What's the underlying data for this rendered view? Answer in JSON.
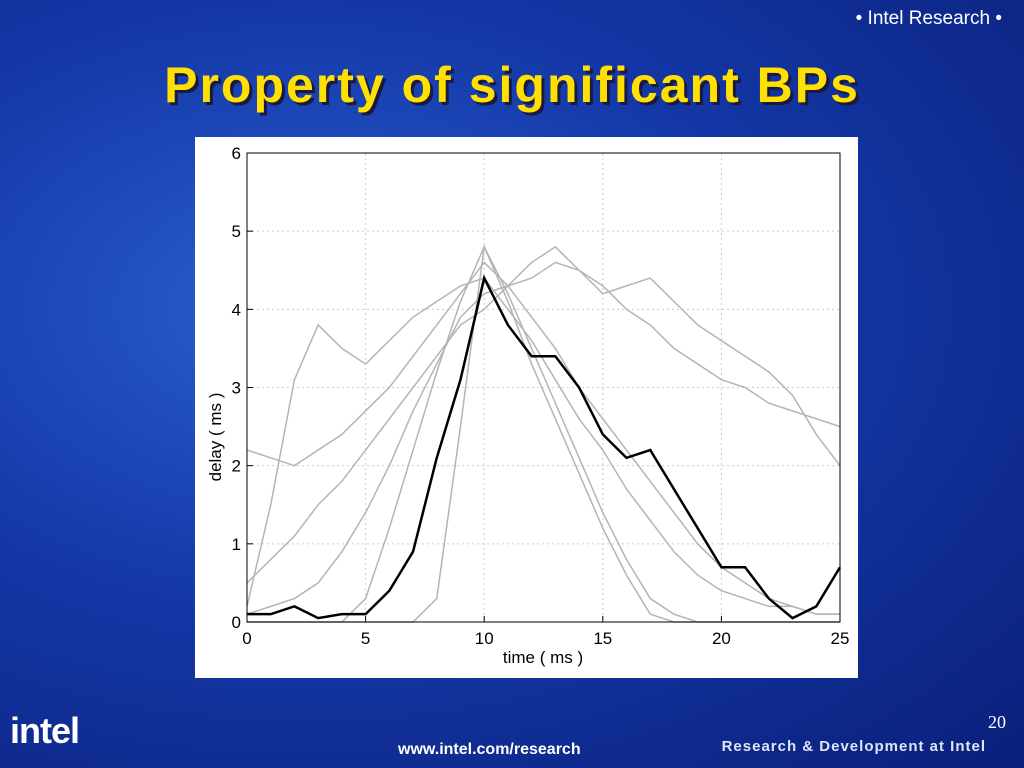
{
  "header": {
    "tag": "• Intel Research •",
    "title": "Property of significant BPs"
  },
  "footer": {
    "logo": "intel",
    "url": "www.intel.com/research",
    "tagline": "Research & Development at Intel",
    "page": "20"
  },
  "chart_data": {
    "type": "line",
    "x_label": "time ( ms )",
    "y_label": "delay ( ms )",
    "x": [
      0,
      1,
      2,
      3,
      4,
      5,
      6,
      7,
      8,
      9,
      10,
      11,
      12,
      13,
      14,
      15,
      16,
      17,
      18,
      19,
      20,
      21,
      22,
      23,
      24,
      25
    ],
    "xlim": [
      0,
      25
    ],
    "xticks": [
      0,
      5,
      10,
      15,
      20,
      25
    ],
    "ylim": [
      0,
      6
    ],
    "yticks": [
      0,
      1,
      2,
      3,
      4,
      5,
      6
    ],
    "grid": true,
    "series": [
      {
        "color": "#b4b4b4",
        "values": [
          0,
          0,
          0,
          0,
          0,
          0.3,
          1.2,
          2.2,
          3.2,
          4.1,
          4.8,
          4.2,
          3.5,
          2.8,
          2.1,
          1.4,
          0.8,
          0.3,
          0.1,
          0,
          0,
          0,
          0,
          0,
          0,
          0
        ]
      },
      {
        "color": "#b4b4b4",
        "values": [
          0.2,
          1.5,
          3.1,
          3.8,
          3.5,
          3.3,
          3.6,
          3.9,
          4.1,
          4.3,
          4.4,
          4.0,
          3.6,
          3.1,
          2.6,
          2.2,
          1.7,
          1.3,
          0.9,
          0.6,
          0.4,
          0.3,
          0.2,
          0.2,
          0.1,
          0.1
        ]
      },
      {
        "color": "#b4b4b4",
        "values": [
          0.1,
          0.2,
          0.3,
          0.5,
          0.9,
          1.4,
          2.0,
          2.7,
          3.3,
          3.9,
          4.2,
          4.3,
          4.4,
          4.6,
          4.5,
          4.3,
          4.0,
          3.8,
          3.5,
          3.3,
          3.1,
          3.0,
          2.8,
          2.7,
          2.6,
          2.5
        ]
      },
      {
        "color": "#b4b4b4",
        "values": [
          2.2,
          2.1,
          2.0,
          2.2,
          2.4,
          2.7,
          3.0,
          3.4,
          3.8,
          4.2,
          4.6,
          4.3,
          3.9,
          3.5,
          3.0,
          2.6,
          2.2,
          1.8,
          1.4,
          1.0,
          0.7,
          0.5,
          0.3,
          0.2,
          0.1,
          0.1
        ]
      },
      {
        "color": "#b4b4b4",
        "values": [
          0,
          0,
          0,
          0,
          0,
          0,
          0,
          0,
          0.3,
          2.5,
          4.8,
          4.1,
          3.3,
          2.6,
          1.9,
          1.2,
          0.6,
          0.1,
          0,
          0,
          0,
          0,
          0,
          0,
          0,
          0
        ]
      },
      {
        "color": "#b4b4b4",
        "values": [
          0.5,
          0.8,
          1.1,
          1.5,
          1.8,
          2.2,
          2.6,
          3.0,
          3.4,
          3.8,
          4.0,
          4.3,
          4.6,
          4.8,
          4.5,
          4.2,
          4.3,
          4.4,
          4.1,
          3.8,
          3.6,
          3.4,
          3.2,
          2.9,
          2.4,
          2.0
        ]
      },
      {
        "color": "#000000",
        "values": [
          0.1,
          0.1,
          0.2,
          0.05,
          0.1,
          0.1,
          0.4,
          0.9,
          2.1,
          3.1,
          4.4,
          3.8,
          3.4,
          3.4,
          3.0,
          2.4,
          2.1,
          2.2,
          1.7,
          1.2,
          0.7,
          0.7,
          0.3,
          0.05,
          0.2,
          0.7
        ]
      }
    ]
  }
}
